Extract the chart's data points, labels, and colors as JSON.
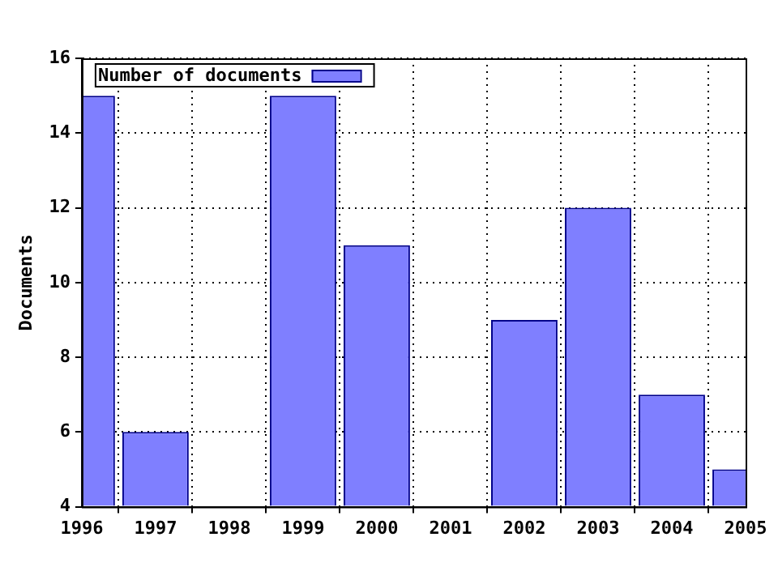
{
  "chart_data": {
    "type": "bar",
    "ylabel": "Documents",
    "x": [
      1996,
      1997,
      1998,
      1999,
      2000,
      2001,
      2002,
      2003,
      2004,
      2005
    ],
    "series": [
      {
        "name": "Number of documents",
        "color": "#7f7fff",
        "values": [
          15,
          6,
          null,
          15,
          11,
          null,
          9,
          12,
          7,
          5
        ]
      }
    ],
    "xlim": [
      1996,
      2005
    ],
    "xticks": [
      1996,
      1997,
      1998,
      1999,
      2000,
      2001,
      2002,
      2003,
      2004,
      2005
    ],
    "ylim": [
      4,
      16
    ],
    "yticks": [
      4,
      6,
      8,
      10,
      12,
      14,
      16
    ],
    "grid": true,
    "legend": "top left"
  }
}
